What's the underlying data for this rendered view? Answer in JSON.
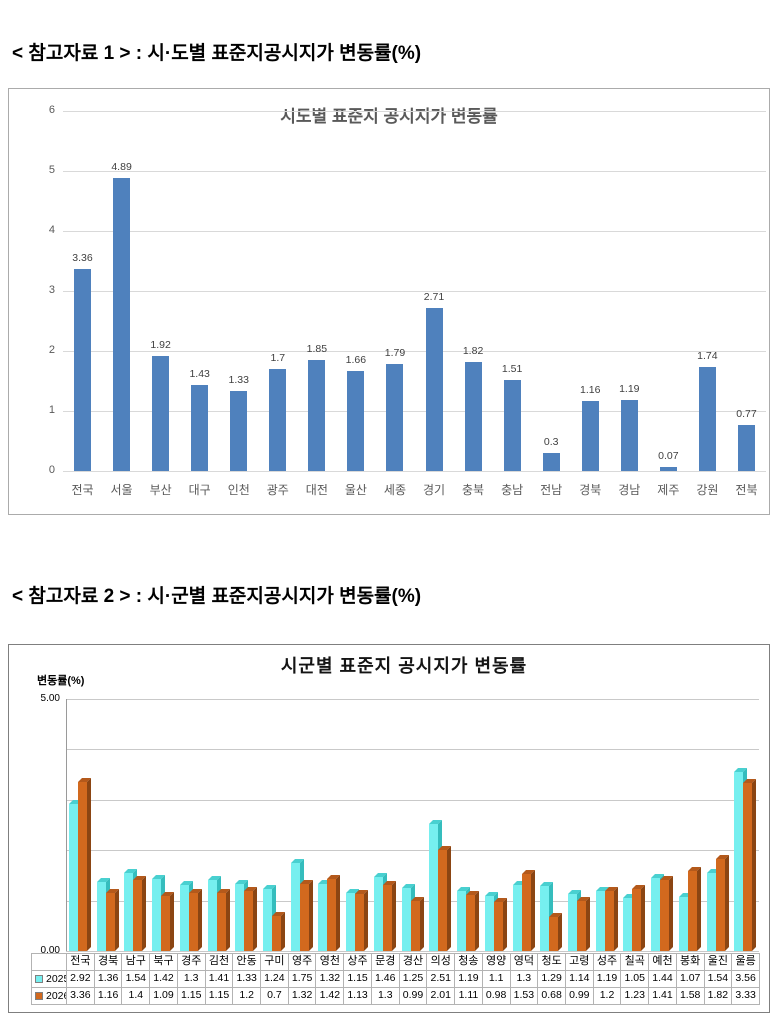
{
  "headings": {
    "h1": "< 참고자료 1 > : 시·도별 표준지공시지가 변동률(%)",
    "h2": "< 참고자료 2 > : 시·군별 표준지공시지가 변동률(%)"
  },
  "chart_data": [
    {
      "type": "bar",
      "title": "시도별 표준지 공시지가 변동률",
      "xlabel": "",
      "ylabel": "",
      "ylim": [
        0,
        6
      ],
      "ytick_interval": 1,
      "grid": true,
      "legend": false,
      "bar_color": "#4f81bd",
      "categories": [
        "전국",
        "서울",
        "부산",
        "대구",
        "인천",
        "광주",
        "대전",
        "울산",
        "세종",
        "경기",
        "충북",
        "충남",
        "전남",
        "경북",
        "경남",
        "제주",
        "강원",
        "전북"
      ],
      "values": [
        3.36,
        4.89,
        1.92,
        1.43,
        1.33,
        1.7,
        1.85,
        1.66,
        1.79,
        2.71,
        1.82,
        1.51,
        0.3,
        1.16,
        1.19,
        0.07,
        1.74,
        0.77
      ],
      "data_labels": true
    },
    {
      "type": "bar",
      "style": "3d-grouped",
      "title": "시군별 표준지 공시지가 변동률",
      "ylabel": "변동률(%)",
      "ylim": [
        0,
        5
      ],
      "ytick_labels": [
        "0.00",
        "5.00"
      ],
      "grid": true,
      "legend_position": "data-table-left",
      "data_table": true,
      "categories": [
        "전국",
        "경북",
        "남구",
        "북구",
        "경주",
        "김천",
        "안동",
        "구미",
        "영주",
        "영천",
        "상주",
        "문경",
        "경산",
        "의성",
        "청송",
        "영양",
        "영덕",
        "청도",
        "고령",
        "성주",
        "칠곡",
        "예천",
        "봉화",
        "울진",
        "울릉"
      ],
      "series": [
        {
          "name": "2025",
          "color": "#76efef",
          "color_top": "#49d0d0",
          "color_side": "#35bdbd",
          "values": [
            2.92,
            1.36,
            1.54,
            1.42,
            1.3,
            1.41,
            1.33,
            1.24,
            1.75,
            1.32,
            1.15,
            1.46,
            1.25,
            2.51,
            1.19,
            1.1,
            1.3,
            1.29,
            1.14,
            1.19,
            1.05,
            1.44,
            1.07,
            1.54,
            3.56
          ]
        },
        {
          "name": "2026",
          "color": "#d2691e",
          "color_top": "#b4591b",
          "color_side": "#8b4513",
          "values": [
            3.36,
            1.16,
            1.4,
            1.09,
            1.15,
            1.15,
            1.2,
            0.7,
            1.32,
            1.42,
            1.13,
            1.3,
            0.99,
            2.01,
            1.11,
            0.98,
            1.53,
            0.68,
            0.99,
            1.2,
            1.23,
            1.41,
            1.58,
            1.82,
            3.33
          ]
        }
      ]
    }
  ]
}
